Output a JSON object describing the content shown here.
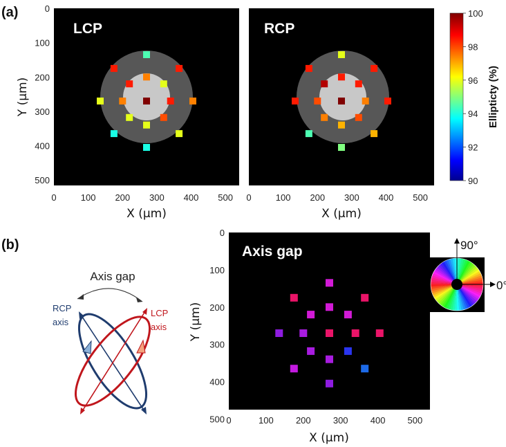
{
  "panel_a_label": "(a)",
  "panel_b_label": "(b)",
  "colorbar": {
    "label": "Ellipticty (%)",
    "ticks": [
      90,
      92,
      94,
      96,
      98,
      100
    ],
    "range": [
      90,
      100
    ]
  },
  "schematic": {
    "gap_label": "Axis gap",
    "rcp_label": [
      "RCP",
      "axis"
    ],
    "lcp_label": [
      "LCP",
      "axis"
    ]
  },
  "color_wheel": {
    "label_top": "90°",
    "label_right": "0°"
  },
  "chart_data": [
    {
      "type": "heatmap",
      "title": "LCP",
      "xlabel": "X (μm)",
      "ylabel": "Y (μm)",
      "xlim": [
        0,
        540
      ],
      "ylim": [
        540,
        0
      ],
      "xticks": [
        0,
        100,
        200,
        300,
        400,
        500
      ],
      "yticks": [
        0,
        100,
        200,
        300,
        400,
        500
      ],
      "point_field": "ellipticity_percent",
      "points": [
        {
          "x": 270,
          "y": 270,
          "v": 100
        },
        {
          "x": 270,
          "y": 135,
          "v": 94.5
        },
        {
          "x": 175,
          "y": 175,
          "v": 98.5
        },
        {
          "x": 365,
          "y": 175,
          "v": 98.5
        },
        {
          "x": 270,
          "y": 200,
          "v": 97.5
        },
        {
          "x": 220,
          "y": 220,
          "v": 98.5
        },
        {
          "x": 320,
          "y": 220,
          "v": 96
        },
        {
          "x": 135,
          "y": 270,
          "v": 96
        },
        {
          "x": 200,
          "y": 270,
          "v": 97.5
        },
        {
          "x": 340,
          "y": 270,
          "v": 98.5
        },
        {
          "x": 405,
          "y": 270,
          "v": 97.5
        },
        {
          "x": 220,
          "y": 318,
          "v": 96
        },
        {
          "x": 320,
          "y": 318,
          "v": 98
        },
        {
          "x": 270,
          "y": 340,
          "v": 96
        },
        {
          "x": 175,
          "y": 365,
          "v": 94
        },
        {
          "x": 365,
          "y": 365,
          "v": 96
        },
        {
          "x": 270,
          "y": 405,
          "v": 94
        }
      ]
    },
    {
      "type": "heatmap",
      "title": "RCP",
      "xlabel": "X (μm)",
      "ylabel": "",
      "xlim": [
        0,
        540
      ],
      "ylim": [
        540,
        0
      ],
      "xticks": [
        0,
        100,
        200,
        300,
        400,
        500
      ],
      "point_field": "ellipticity_percent",
      "points": [
        {
          "x": 270,
          "y": 270,
          "v": 100
        },
        {
          "x": 270,
          "y": 135,
          "v": 96
        },
        {
          "x": 175,
          "y": 175,
          "v": 98.5
        },
        {
          "x": 365,
          "y": 175,
          "v": 98.5
        },
        {
          "x": 270,
          "y": 200,
          "v": 98.5
        },
        {
          "x": 220,
          "y": 220,
          "v": 99.5
        },
        {
          "x": 320,
          "y": 220,
          "v": 98.5
        },
        {
          "x": 135,
          "y": 270,
          "v": 98.5
        },
        {
          "x": 200,
          "y": 270,
          "v": 98
        },
        {
          "x": 340,
          "y": 270,
          "v": 97.5
        },
        {
          "x": 405,
          "y": 270,
          "v": 98.5
        },
        {
          "x": 220,
          "y": 318,
          "v": 97.5
        },
        {
          "x": 320,
          "y": 318,
          "v": 98
        },
        {
          "x": 270,
          "y": 340,
          "v": 97
        },
        {
          "x": 175,
          "y": 365,
          "v": 94.5
        },
        {
          "x": 365,
          "y": 365,
          "v": 97
        },
        {
          "x": 270,
          "y": 405,
          "v": 95
        }
      ]
    },
    {
      "type": "heatmap",
      "title": "Axis gap",
      "xlabel": "X (μm)",
      "ylabel": "Y (μm)",
      "xlim": [
        0,
        540
      ],
      "ylim": [
        540,
        0
      ],
      "xticks": [
        0,
        100,
        200,
        300,
        400,
        500
      ],
      "yticks": [
        0,
        100,
        200,
        300,
        400,
        500
      ],
      "point_field": "axis_gap_color",
      "points": [
        {
          "x": 270,
          "y": 135,
          "c": "#d21ad6"
        },
        {
          "x": 175,
          "y": 175,
          "c": "#ea1468"
        },
        {
          "x": 365,
          "y": 175,
          "c": "#ea1468"
        },
        {
          "x": 270,
          "y": 200,
          "c": "#d21ad6"
        },
        {
          "x": 220,
          "y": 220,
          "c": "#d21ad6"
        },
        {
          "x": 320,
          "y": 220,
          "c": "#d21ad6"
        },
        {
          "x": 135,
          "y": 270,
          "c": "#8e1ce0"
        },
        {
          "x": 200,
          "y": 270,
          "c": "#a81ce0"
        },
        {
          "x": 270,
          "y": 270,
          "c": "#ea1468"
        },
        {
          "x": 340,
          "y": 270,
          "c": "#ea1468"
        },
        {
          "x": 405,
          "y": 270,
          "c": "#ea1468"
        },
        {
          "x": 220,
          "y": 318,
          "c": "#a81ce0"
        },
        {
          "x": 320,
          "y": 318,
          "c": "#2a35f0"
        },
        {
          "x": 270,
          "y": 340,
          "c": "#a81ce0"
        },
        {
          "x": 175,
          "y": 365,
          "c": "#c31ae0"
        },
        {
          "x": 365,
          "y": 365,
          "c": "#1d6ae8"
        },
        {
          "x": 270,
          "y": 405,
          "c": "#8e1ce0"
        }
      ]
    }
  ],
  "colors": {
    "background": "#000000",
    "outer_disk": "#575757",
    "inner_disk": "#c8c8c8",
    "rcp": "#1f3c6e",
    "lcp": "#c0161c"
  }
}
